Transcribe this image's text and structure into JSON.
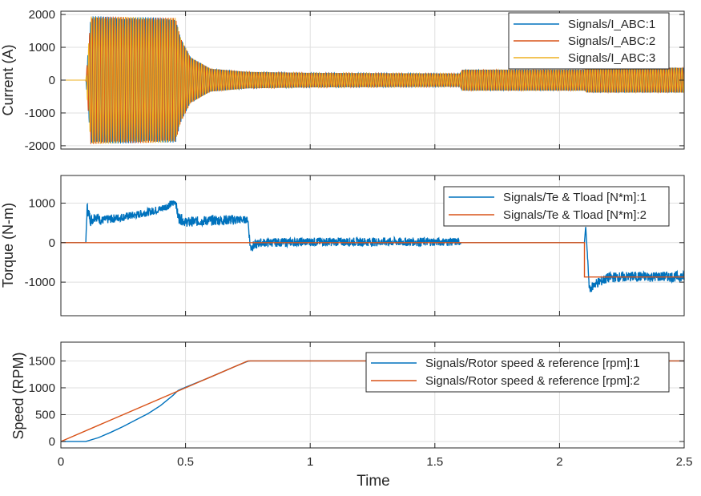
{
  "chart_data": [
    {
      "type": "line",
      "ylabel": "Current (A)",
      "xlabel": "",
      "xlim": [
        0,
        2.5
      ],
      "ylim": [
        -2100,
        2100
      ],
      "yticks": [
        -2000,
        -1000,
        0,
        1000,
        2000
      ],
      "yticklabels": [
        "-2000",
        "-1000",
        "0",
        "1000",
        "2000"
      ],
      "grid": true,
      "legend_position": "top-right",
      "series": [
        {
          "name": "Signals/I_ABC:1",
          "color": "#0072BD",
          "phase_deg": 0
        },
        {
          "name": "Signals/I_ABC:2",
          "color": "#D95319",
          "phase_deg": 120
        },
        {
          "name": "Signals/I_ABC:3",
          "color": "#EDB120",
          "phase_deg": 240
        }
      ],
      "envelope": {
        "x": [
          0,
          0.1,
          0.12,
          0.46,
          0.48,
          0.52,
          0.6,
          0.75,
          1.0,
          1.6,
          1.61,
          2.1,
          2.11,
          2.5
        ],
        "amplitude": [
          0,
          0,
          1950,
          1900,
          1300,
          700,
          350,
          250,
          220,
          200,
          320,
          320,
          380,
          380
        ]
      }
    },
    {
      "type": "line",
      "ylabel": "Torque (N-m)",
      "xlabel": "",
      "xlim": [
        0,
        2.5
      ],
      "ylim": [
        -1850,
        1700
      ],
      "yticks": [
        -1000,
        0,
        1000
      ],
      "yticklabels": [
        "-1000",
        "0",
        "1000"
      ],
      "grid": true,
      "legend_position": "top-right",
      "series": [
        {
          "name": "Signals/Te & Tload [N*m]:1",
          "color": "#0072BD",
          "x": [
            0,
            0.1,
            0.105,
            0.12,
            0.14,
            0.16,
            0.2,
            0.3,
            0.4,
            0.45,
            0.46,
            0.47,
            0.5,
            0.6,
            0.7,
            0.75,
            0.76,
            0.8,
            1.0,
            1.2,
            1.4,
            1.6,
            1.605,
            2.1,
            2.105,
            2.12,
            2.14,
            2.2,
            2.3,
            2.5
          ],
          "y": [
            0,
            0,
            880,
            560,
            680,
            560,
            600,
            700,
            850,
            1000,
            1050,
            650,
            520,
            560,
            580,
            580,
            -120,
            0,
            20,
            20,
            20,
            20,
            0,
            0,
            420,
            -1200,
            -1050,
            -880,
            -860,
            -860
          ],
          "ripple": [
            0,
            0,
            150,
            150,
            130,
            110,
            110,
            100,
            100,
            100,
            80,
            150,
            120,
            130,
            130,
            80,
            130,
            110,
            110,
            110,
            110,
            100,
            0,
            0,
            0,
            100,
            130,
            130,
            130,
            130
          ]
        },
        {
          "name": "Signals/Te & Tload [N*m]:2",
          "color": "#D95319",
          "x": [
            0,
            2.1,
            2.1,
            2.5
          ],
          "y": [
            0,
            0,
            -870,
            -870
          ]
        }
      ]
    },
    {
      "type": "line",
      "ylabel": "Speed (RPM)",
      "xlabel": "Time",
      "xlim": [
        0,
        2.5
      ],
      "ylim": [
        -120,
        1850
      ],
      "xticks": [
        0,
        0.5,
        1,
        1.5,
        2,
        2.5
      ],
      "xticklabels": [
        "0",
        "0.5",
        "1",
        "1.5",
        "2",
        "2.5"
      ],
      "yticks": [
        0,
        500,
        1000,
        1500
      ],
      "yticklabels": [
        "0",
        "500",
        "1000",
        "1500"
      ],
      "grid": true,
      "legend_position": "top-right",
      "series": [
        {
          "name": "Signals/Rotor speed & reference [rpm]:1",
          "color": "#0072BD",
          "x": [
            0,
            0.1,
            0.15,
            0.2,
            0.25,
            0.3,
            0.35,
            0.4,
            0.45,
            0.47,
            0.5,
            0.6,
            0.7,
            0.75,
            0.76,
            2.5
          ],
          "y": [
            0,
            0,
            70,
            170,
            280,
            400,
            520,
            670,
            860,
            950,
            1010,
            1200,
            1400,
            1495,
            1500,
            1500
          ]
        },
        {
          "name": "Signals/Rotor speed & reference [rpm]:2",
          "color": "#D95319",
          "x": [
            0,
            0.75,
            2.5
          ],
          "y": [
            0,
            1500,
            1500
          ]
        }
      ]
    }
  ]
}
